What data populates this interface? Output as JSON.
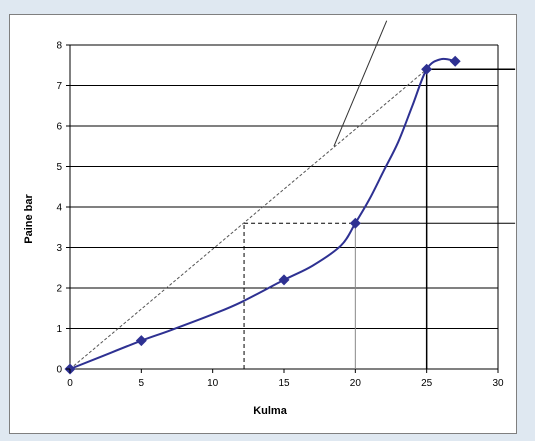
{
  "chart_data": {
    "type": "line",
    "xlabel": "Kulma",
    "ylabel": "Paine bar",
    "xlim": [
      0,
      30
    ],
    "ylim": [
      0,
      8
    ],
    "x_ticks": [
      "0",
      "5",
      "10",
      "15",
      "20",
      "25",
      "30"
    ],
    "y_ticks": [
      "0",
      "1",
      "2",
      "3",
      "4",
      "5",
      "6",
      "7",
      "8"
    ],
    "grid": "horizontal",
    "legend": "none",
    "series_color": "#2e3192",
    "series": [
      {
        "points": [
          {
            "x": 0,
            "y": 0
          },
          {
            "x": 5,
            "y": 0.7
          },
          {
            "x": 15,
            "y": 2.2
          },
          {
            "x": 20,
            "y": 3.6
          },
          {
            "x": 25,
            "y": 7.4
          },
          {
            "x": 27,
            "y": 7.6
          }
        ],
        "curve": [
          [
            0,
            0
          ],
          [
            2,
            0.28
          ],
          [
            5,
            0.7
          ],
          [
            7,
            0.95
          ],
          [
            10,
            1.35
          ],
          [
            12,
            1.65
          ],
          [
            15,
            2.2
          ],
          [
            17,
            2.55
          ],
          [
            19,
            3.05
          ],
          [
            20,
            3.6
          ],
          [
            21,
            4.2
          ],
          [
            22,
            4.9
          ],
          [
            23,
            5.6
          ],
          [
            24,
            6.5
          ],
          [
            25,
            7.4
          ],
          [
            26,
            7.65
          ],
          [
            27,
            7.6
          ]
        ]
      }
    ],
    "annotations": {
      "secant_dashed": [
        [
          0,
          0
        ],
        [
          25,
          7.4
        ]
      ],
      "tangent_solid": [
        [
          18.5,
          5.5
        ],
        [
          22.2,
          8.6
        ]
      ],
      "drop_dashed_horizontal": [
        [
          12.2,
          3.6
        ],
        [
          20,
          3.6
        ]
      ],
      "drop_dashed_vertical": [
        [
          12.2,
          0
        ],
        [
          12.2,
          3.6
        ]
      ],
      "drop_solid_vertical_20": [
        [
          20,
          0
        ],
        [
          20,
          3.6
        ]
      ],
      "drop_solid_vertical_25": [
        [
          25,
          0
        ],
        [
          25,
          7.4
        ]
      ],
      "leader_upper": [
        [
          25,
          7.4
        ],
        [
          31.2,
          7.4
        ]
      ],
      "leader_lower": [
        [
          20,
          3.6
        ],
        [
          31.2,
          3.6
        ]
      ]
    }
  }
}
